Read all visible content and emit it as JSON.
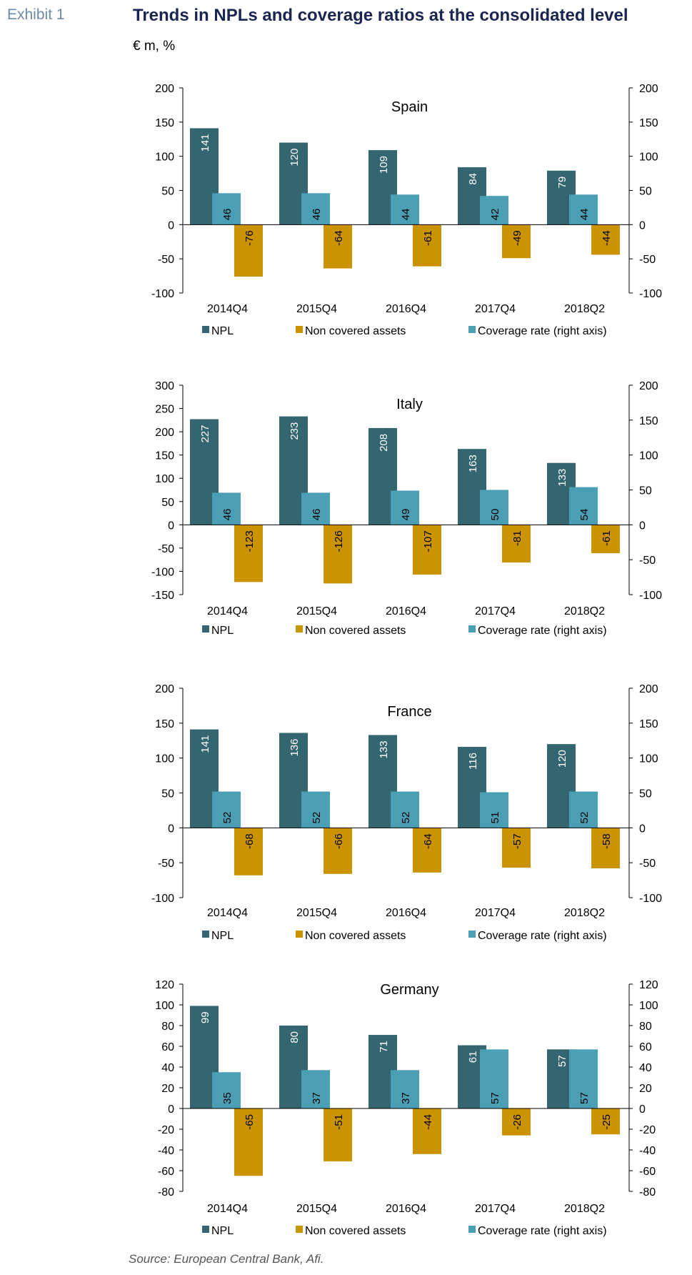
{
  "exhibit_label": "Exhibit 1",
  "title": "Trends in NPLs and coverage ratios at the consolidated level",
  "subtitle": "€ m, %",
  "source": "Source: European Central Bank, Afi.",
  "colors": {
    "npl": "#336670",
    "non_covered": "#cc9300",
    "coverage": "#4b9fb4",
    "axis": "#000000"
  },
  "legend": {
    "npl": "NPL",
    "non_covered": "Non covered assets",
    "coverage": "Coverage rate (right axis)"
  },
  "chart_data": [
    {
      "type": "bar",
      "title": "Spain",
      "categories": [
        "2014Q4",
        "2015Q4",
        "2016Q4",
        "2017Q4",
        "2018Q2"
      ],
      "ylim": [
        -100,
        200
      ],
      "yticks": [
        "200",
        "150",
        "100",
        "50",
        "0",
        "-50",
        "-100"
      ],
      "ylim_right": [
        -100,
        200
      ],
      "yticks_right": [
        "200",
        "150",
        "100",
        "50",
        "0",
        "-50",
        "-100"
      ],
      "series": [
        {
          "name": "NPL",
          "values": [
            141,
            120,
            109,
            84,
            79
          ],
          "labels": [
            "141",
            "120",
            "109",
            "84",
            "79"
          ],
          "axis": "left"
        },
        {
          "name": "Non covered assets",
          "values": [
            -76,
            -64,
            -61,
            -49,
            -44
          ],
          "labels": [
            "-76",
            "-64",
            "-61",
            "-49",
            "-44"
          ],
          "axis": "left"
        },
        {
          "name": "Coverage rate (right axis)",
          "values": [
            46,
            46,
            44,
            42,
            44
          ],
          "labels": [
            "46",
            "46",
            "44",
            "42",
            "44"
          ],
          "axis": "right"
        }
      ]
    },
    {
      "type": "bar",
      "title": "Italy",
      "categories": [
        "2014Q4",
        "2015Q4",
        "2016Q4",
        "2017Q4",
        "2018Q2"
      ],
      "ylim": [
        -150,
        300
      ],
      "yticks": [
        "300",
        "250",
        "200",
        "150",
        "100",
        "50",
        "0",
        "-50",
        "-100",
        "-150"
      ],
      "ylim_right": [
        -100,
        200
      ],
      "yticks_right": [
        "200",
        "150",
        "100",
        "50",
        "0",
        "-50",
        "-100"
      ],
      "series": [
        {
          "name": "NPL",
          "values": [
            227,
            233,
            208,
            163,
            133
          ],
          "labels": [
            "227",
            "233",
            "208",
            "163",
            "133"
          ],
          "axis": "left"
        },
        {
          "name": "Non covered assets",
          "values": [
            -123,
            -126,
            -107,
            -81,
            -61
          ],
          "labels": [
            "-123",
            "-126",
            "-107",
            "-81",
            "-61"
          ],
          "axis": "left"
        },
        {
          "name": "Coverage rate (right axis)",
          "values": [
            46,
            46,
            49,
            50,
            54
          ],
          "labels": [
            "46",
            "46",
            "49",
            "50",
            "54"
          ],
          "axis": "right"
        }
      ]
    },
    {
      "type": "bar",
      "title": "France",
      "categories": [
        "2014Q4",
        "2015Q4",
        "2016Q4",
        "2017Q4",
        "2018Q2"
      ],
      "ylim": [
        -100,
        200
      ],
      "yticks": [
        "200",
        "150",
        "100",
        "50",
        "0",
        "-50",
        "-100"
      ],
      "ylim_right": [
        -100,
        200
      ],
      "yticks_right": [
        "200",
        "150",
        "100",
        "50",
        "0",
        "-50",
        "-100"
      ],
      "series": [
        {
          "name": "NPL",
          "values": [
            141,
            136,
            133,
            116,
            120
          ],
          "labels": [
            "141",
            "136",
            "133",
            "116",
            "120"
          ],
          "axis": "left"
        },
        {
          "name": "Non covered assets",
          "values": [
            -68,
            -66,
            -64,
            -57,
            -58
          ],
          "labels": [
            "-68",
            "-66",
            "-64",
            "-57",
            "-58"
          ],
          "axis": "left"
        },
        {
          "name": "Coverage rate (right axis)",
          "values": [
            52,
            52,
            52,
            51,
            52
          ],
          "labels": [
            "52",
            "52",
            "52",
            "51",
            "52"
          ],
          "axis": "right"
        }
      ]
    },
    {
      "type": "bar",
      "title": "Germany",
      "categories": [
        "2014Q4",
        "2015Q4",
        "2016Q4",
        "2017Q4",
        "2018Q2"
      ],
      "ylim": [
        -80,
        120
      ],
      "yticks": [
        "120",
        "100",
        "80",
        "60",
        "40",
        "20",
        "0",
        "-20",
        "-40",
        "-60",
        "-80"
      ],
      "ylim_right": [
        -80,
        120
      ],
      "yticks_right": [
        "120",
        "100",
        "80",
        "60",
        "40",
        "20",
        "0",
        "-20",
        "-40",
        "-60",
        "-80"
      ],
      "series": [
        {
          "name": "NPL",
          "values": [
            99,
            80,
            71,
            61,
            57
          ],
          "labels": [
            "99",
            "80",
            "71",
            "61",
            "57"
          ],
          "axis": "left"
        },
        {
          "name": "Non covered assets",
          "values": [
            -65,
            -51,
            -44,
            -26,
            -25
          ],
          "labels": [
            "-65",
            "-51",
            "-44",
            "-26",
            "-25"
          ],
          "axis": "left"
        },
        {
          "name": "Coverage rate (right axis)",
          "values": [
            35,
            37,
            37,
            57,
            57
          ],
          "labels": [
            "35",
            "37",
            "37",
            "57",
            "57"
          ],
          "axis": "right"
        }
      ]
    }
  ]
}
